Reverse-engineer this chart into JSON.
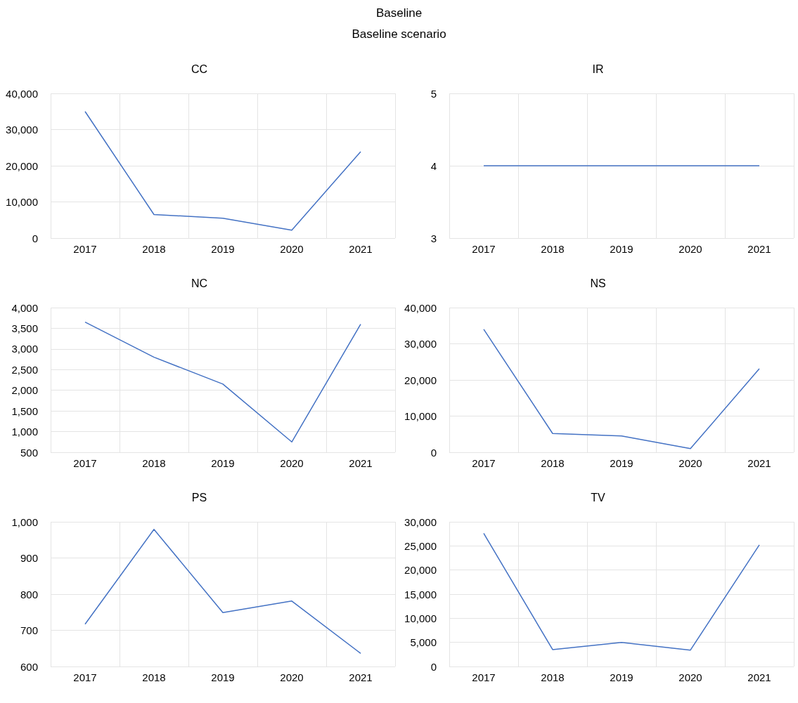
{
  "chart_data": [
    {
      "type": "line",
      "title": "CC",
      "annotations": [
        "Baseline",
        "Baseline scenario"
      ],
      "categories": [
        "2017",
        "2018",
        "2019",
        "2020",
        "2021"
      ],
      "values": [
        35000,
        6500,
        5500,
        2200,
        23900
      ],
      "color": "#4472c4",
      "ylim": [
        0,
        40000
      ],
      "yticks": [
        0,
        {
          "value": 10000,
          "label": "10,000"
        },
        {
          "value": 20000,
          "label": "20,000"
        },
        {
          "value": 30000,
          "label": "30,000"
        },
        {
          "value": 40000,
          "label": "40,000"
        }
      ],
      "grid": true
    },
    {
      "type": "line",
      "title": "IR",
      "categories": [
        "2017",
        "2018",
        "2019",
        "2020",
        "2021"
      ],
      "values": [
        4,
        4,
        4,
        4,
        4
      ],
      "color": "#4472c4",
      "ylim": [
        3,
        5
      ],
      "yticks": [
        3,
        4,
        5
      ],
      "grid": true
    },
    {
      "type": "line",
      "title": "NC",
      "categories": [
        "2017",
        "2018",
        "2019",
        "2020",
        "2021"
      ],
      "values": [
        3650,
        2800,
        2150,
        750,
        3600
      ],
      "color": "#4472c4",
      "ylim": [
        500,
        4000
      ],
      "yticks": [
        500,
        {
          "value": 1000,
          "label": "1,000"
        },
        {
          "value": 1500,
          "label": "1,500"
        },
        {
          "value": 2000,
          "label": "2,000"
        },
        {
          "value": 2500,
          "label": "2,500"
        },
        {
          "value": 3000,
          "label": "3,000"
        },
        {
          "value": 3500,
          "label": "3,500"
        },
        {
          "value": 4000,
          "label": "4,000"
        }
      ],
      "grid": true
    },
    {
      "type": "line",
      "title": "NS",
      "categories": [
        "2017",
        "2018",
        "2019",
        "2020",
        "2021"
      ],
      "values": [
        34000,
        5200,
        4500,
        1000,
        23100
      ],
      "color": "#4472c4",
      "ylim": [
        0,
        40000
      ],
      "yticks": [
        0,
        {
          "value": 10000,
          "label": "10,000"
        },
        {
          "value": 20000,
          "label": "20,000"
        },
        {
          "value": 30000,
          "label": "30,000"
        },
        {
          "value": 40000,
          "label": "40,000"
        }
      ],
      "grid": true
    },
    {
      "type": "line",
      "title": "PS",
      "categories": [
        "2017",
        "2018",
        "2019",
        "2020",
        "2021"
      ],
      "values": [
        717,
        979,
        749,
        781,
        636
      ],
      "color": "#4472c4",
      "ylim": [
        600,
        1000
      ],
      "yticks": [
        600,
        700,
        800,
        900,
        {
          "value": 1000,
          "label": "1,000"
        }
      ],
      "grid": true
    },
    {
      "type": "line",
      "title": "TV",
      "categories": [
        "2017",
        "2018",
        "2019",
        "2020",
        "2021"
      ],
      "values": [
        27600,
        3500,
        5000,
        3400,
        25200
      ],
      "color": "#4472c4",
      "ylim": [
        0,
        30000
      ],
      "yticks": [
        0,
        {
          "value": 5000,
          "label": "5,000"
        },
        {
          "value": 10000,
          "label": "10,000"
        },
        {
          "value": 15000,
          "label": "15,000"
        },
        {
          "value": 20000,
          "label": "20,000"
        },
        {
          "value": 25000,
          "label": "25,000"
        },
        {
          "value": 30000,
          "label": "30,000"
        }
      ],
      "grid": true
    }
  ]
}
